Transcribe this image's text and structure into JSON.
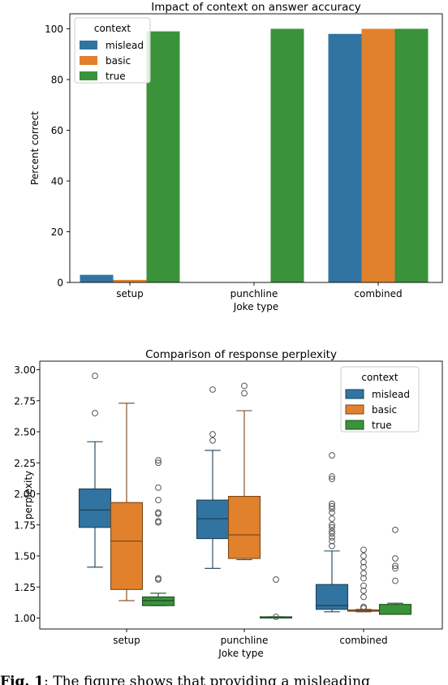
{
  "colors": {
    "mislead": "#3274a1",
    "basic": "#e1812c",
    "true": "#3a923a"
  },
  "chart_data": [
    {
      "type": "bar",
      "title": "Impact of context on answer accuracy",
      "xlabel": "Joke type",
      "ylabel": "Percent correct",
      "categories": [
        "setup",
        "punchline",
        "combined"
      ],
      "ylim": [
        0,
        100
      ],
      "yticks": [
        0,
        20,
        40,
        60,
        80,
        100
      ],
      "legend_title": "context",
      "legend_position": "top-left",
      "series": [
        {
          "name": "mislead",
          "values": [
            3,
            0,
            98
          ]
        },
        {
          "name": "basic",
          "values": [
            1,
            0,
            100
          ]
        },
        {
          "name": "true",
          "values": [
            99,
            100,
            100
          ]
        }
      ]
    },
    {
      "type": "box",
      "title": "Comparison of response perplexity",
      "xlabel": "Joke type",
      "ylabel": "perplexity",
      "categories": [
        "setup",
        "punchline",
        "combined"
      ],
      "ylim": [
        0.97,
        3.02
      ],
      "yticks": [
        "1.00",
        "1.25",
        "1.50",
        "1.75",
        "2.00",
        "2.25",
        "2.50",
        "2.75",
        "3.00"
      ],
      "legend_title": "context",
      "legend_position": "top-right",
      "series": [
        {
          "name": "mislead",
          "boxes": [
            {
              "whislo": 1.41,
              "q1": 1.73,
              "med": 1.87,
              "q3": 2.04,
              "whishi": 2.42,
              "fliers": [
                2.65,
                2.95
              ]
            },
            {
              "whislo": 1.4,
              "q1": 1.64,
              "med": 1.8,
              "q3": 1.95,
              "whishi": 2.35,
              "fliers": [
                2.43,
                2.48,
                2.84
              ]
            },
            {
              "whislo": 1.05,
              "q1": 1.07,
              "med": 1.1,
              "q3": 1.27,
              "whishi": 1.54,
              "fliers": [
                1.58,
                1.62,
                1.65,
                1.68,
                1.7,
                1.73,
                1.75,
                1.8,
                1.85,
                1.88,
                1.9,
                1.92,
                2.12,
                2.14,
                2.31
              ]
            }
          ]
        },
        {
          "name": "basic",
          "boxes": [
            {
              "whislo": 1.14,
              "q1": 1.23,
              "med": 1.62,
              "q3": 1.93,
              "whishi": 2.73,
              "fliers": []
            },
            {
              "whislo": 1.47,
              "q1": 1.48,
              "med": 1.67,
              "q3": 1.98,
              "whishi": 2.67,
              "fliers": [
                2.81,
                2.87
              ]
            },
            {
              "whislo": 1.05,
              "q1": 1.06,
              "med": 1.06,
              "q3": 1.065,
              "whishi": 1.07,
              "fliers": [
                1.08,
                1.09,
                1.17,
                1.22,
                1.26,
                1.32,
                1.36,
                1.41,
                1.45,
                1.5,
                1.55
              ]
            }
          ]
        },
        {
          "name": "true",
          "boxes": [
            {
              "whislo": 1.1,
              "q1": 1.1,
              "med": 1.14,
              "q3": 1.17,
              "whishi": 1.2,
              "fliers": [
                1.31,
                1.32,
                1.77,
                1.78,
                1.84,
                1.85,
                1.95,
                2.05,
                2.25,
                2.27
              ]
            },
            {
              "whislo": 1.0,
              "q1": 1.005,
              "med": 1.005,
              "q3": 1.01,
              "whishi": 1.01,
              "fliers": [
                1.01,
                1.31
              ]
            },
            {
              "whislo": 1.03,
              "q1": 1.03,
              "med": 1.03,
              "q3": 1.11,
              "whishi": 1.12,
              "fliers": [
                1.3,
                1.4,
                1.42,
                1.48,
                1.71
              ]
            }
          ]
        }
      ]
    }
  ],
  "caption": {
    "prefix": "Fig. 1",
    "text": ": The figure shows that providing a misleading"
  }
}
